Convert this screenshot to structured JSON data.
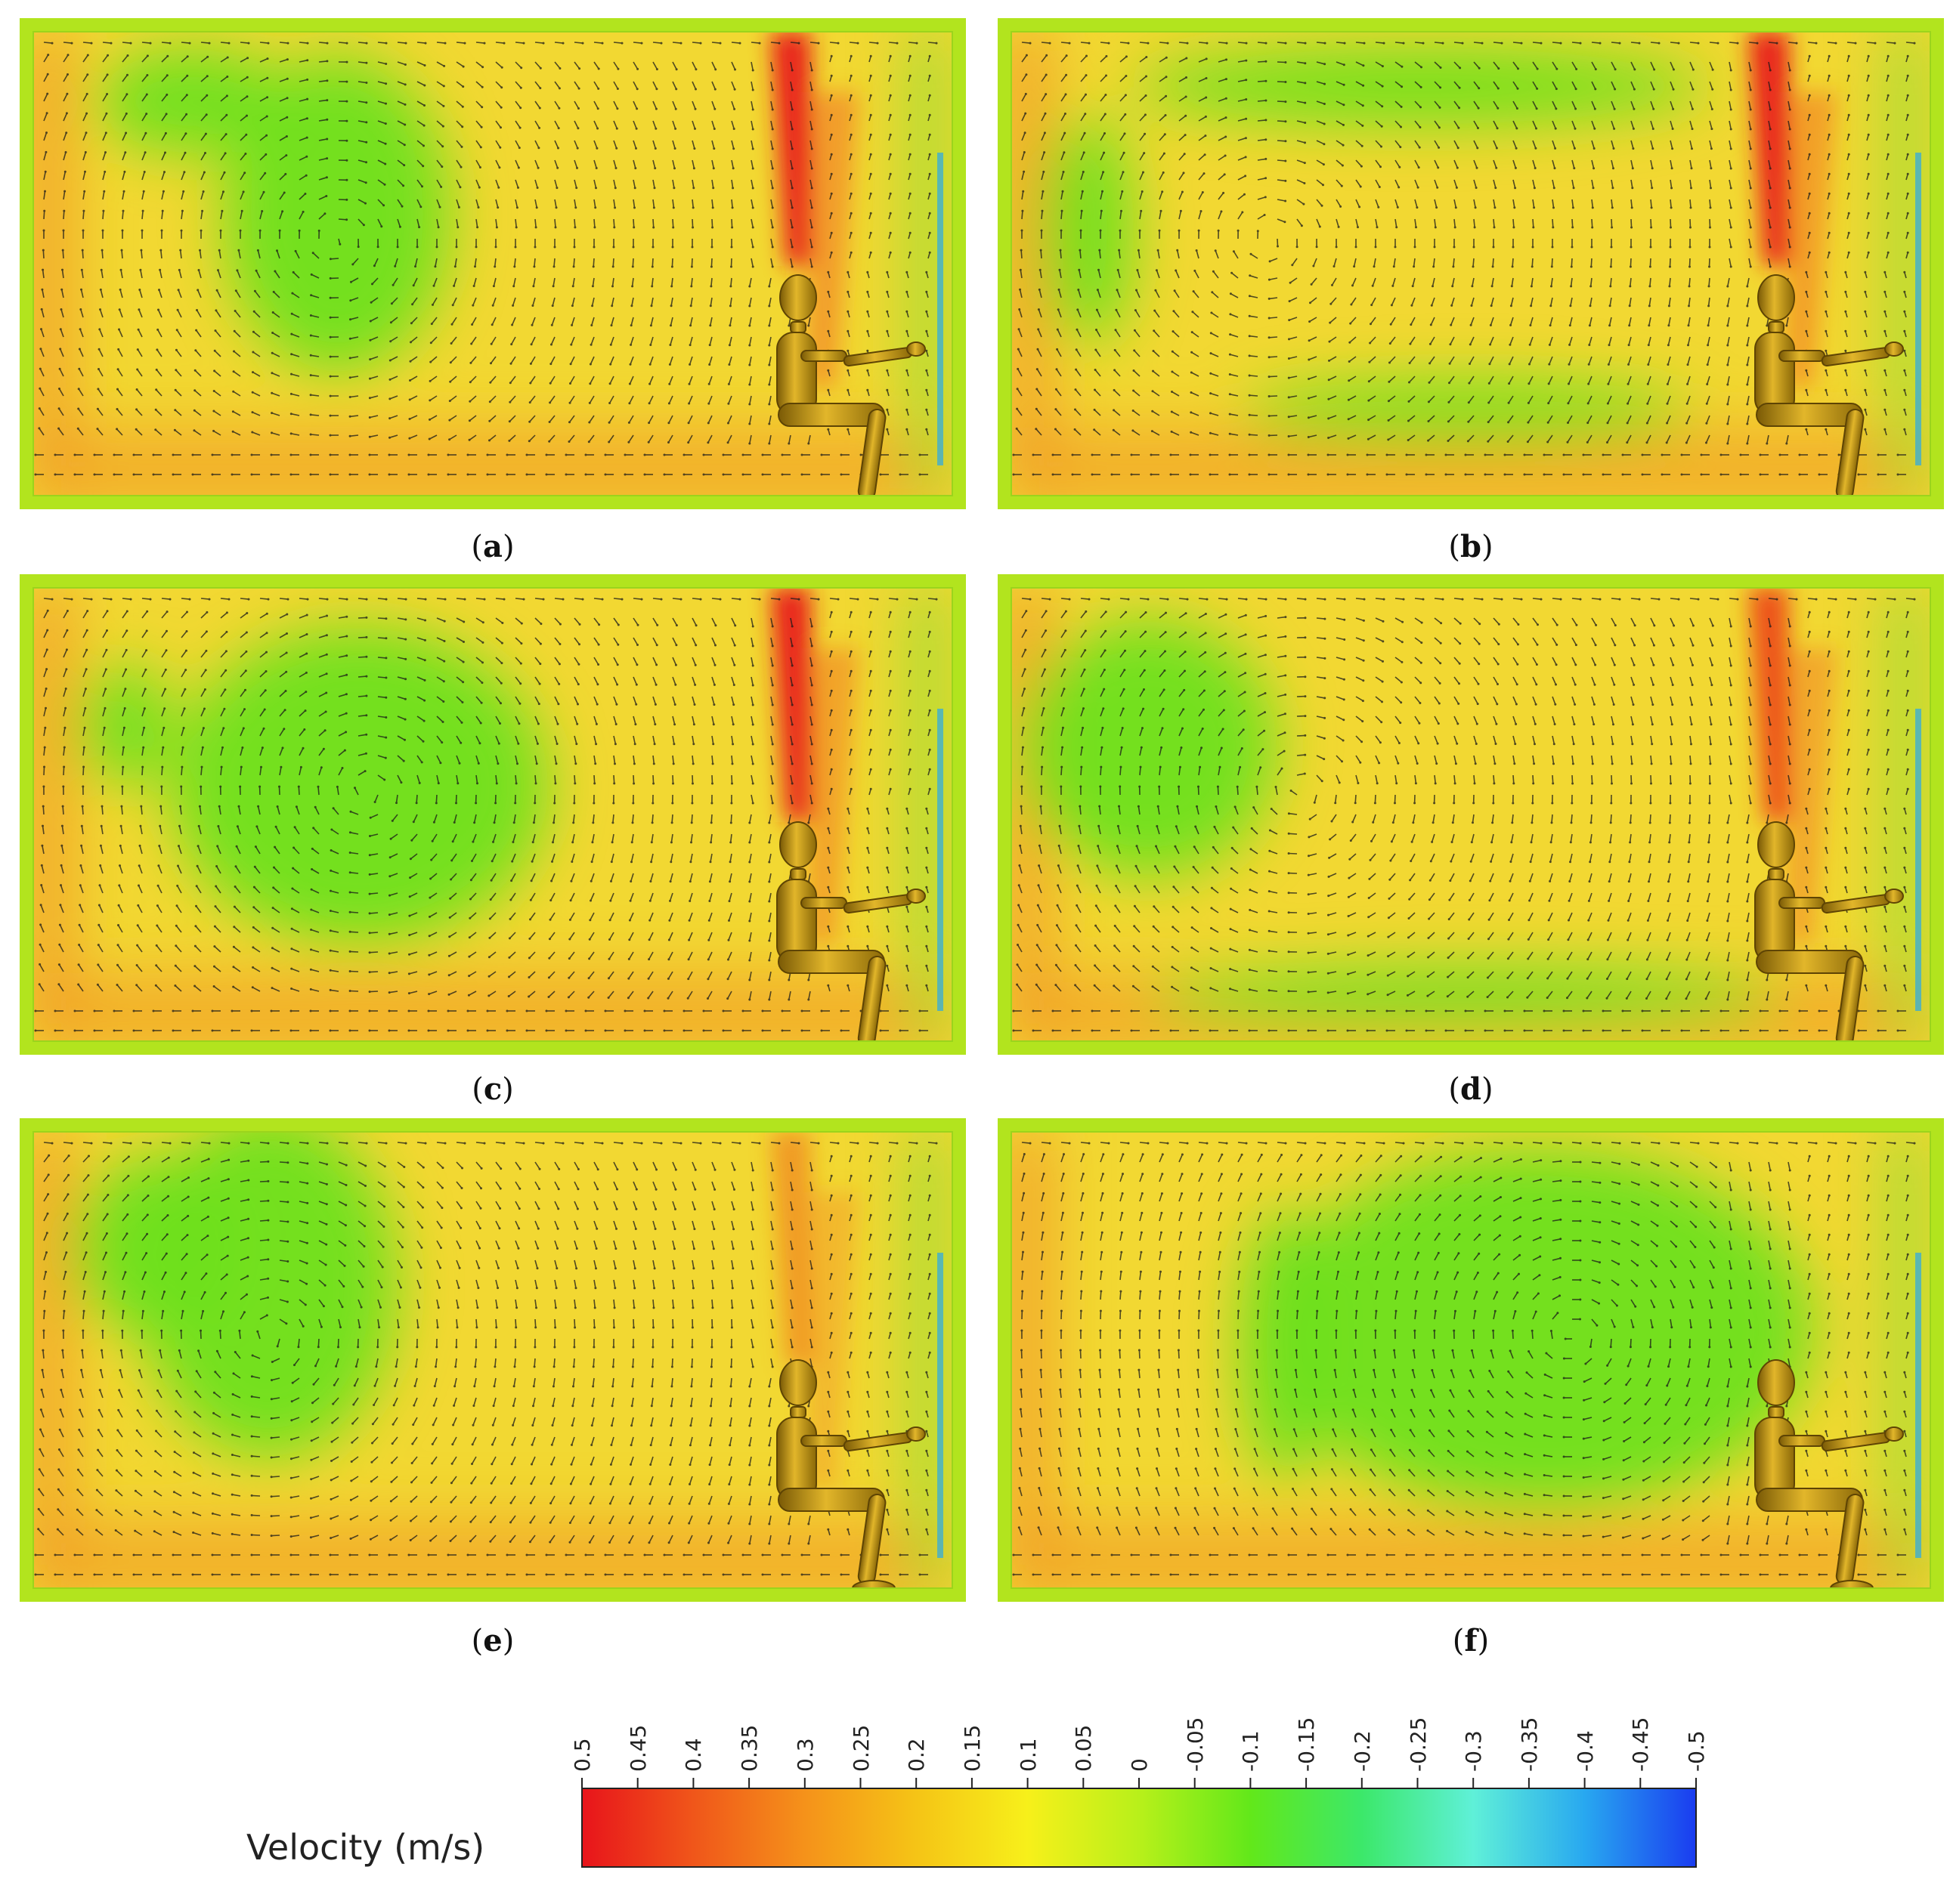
{
  "figure": {
    "panels": [
      {
        "label": "a",
        "open": "(",
        "close": ")",
        "peak": 1.0,
        "arm": 1
      },
      {
        "label": "b",
        "open": "(",
        "close": ")",
        "peak": 0.95,
        "arm": 1
      },
      {
        "label": "c",
        "open": "(",
        "close": ")",
        "peak": 0.9,
        "arm": 1
      },
      {
        "label": "d",
        "open": "(",
        "close": ")",
        "peak": 0.8,
        "arm": 1
      },
      {
        "label": "e",
        "open": "(",
        "close": ")",
        "peak": 0.55,
        "arm": 1
      },
      {
        "label": "f",
        "open": "(",
        "close": ")",
        "peak": 0.0,
        "arm": 1
      }
    ]
  },
  "legend": {
    "title": "Velocity (m/s)",
    "ticks": [
      "0.5",
      "0.45",
      "0.4",
      "0.35",
      "0.3",
      "0.25",
      "0.2",
      "0.15",
      "0.1",
      "0.05",
      "0",
      "-0.05",
      "-0.1",
      "-0.15",
      "-0.2",
      "-0.25",
      "-0.3",
      "-0.35",
      "-0.4",
      "-0.45",
      "-0.5"
    ],
    "colors": [
      "#e8141b",
      "#f0561a",
      "#f5921a",
      "#f5c416",
      "#f7f01a",
      "#b8f01a",
      "#62e81a",
      "#3ce86a",
      "#5ff0d8",
      "#28a8f0",
      "#1a3cf0"
    ]
  }
}
